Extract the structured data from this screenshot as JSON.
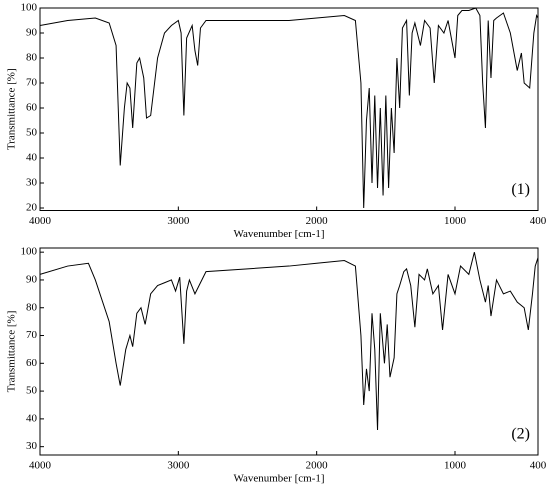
{
  "chart_data": [
    {
      "type": "line",
      "annotation": "(1)",
      "xlabel": "Wavenumber [cm-1]",
      "ylabel": "Transmittance [%]",
      "color": "#000000",
      "xlim": [
        4000,
        400
      ],
      "xticks": [
        4000,
        3000,
        2000,
        1000,
        400
      ],
      "ylim": [
        19,
        100
      ],
      "yticks": [
        20,
        30,
        40,
        50,
        60,
        70,
        80,
        90,
        100
      ],
      "x": [
        4000,
        3800,
        3600,
        3500,
        3450,
        3420,
        3390,
        3370,
        3350,
        3330,
        3300,
        3280,
        3250,
        3230,
        3200,
        3150,
        3100,
        3050,
        3000,
        2980,
        2960,
        2940,
        2900,
        2880,
        2860,
        2840,
        2800,
        2500,
        2200,
        2000,
        1800,
        1720,
        1680,
        1660,
        1640,
        1620,
        1600,
        1580,
        1560,
        1540,
        1520,
        1500,
        1480,
        1460,
        1440,
        1420,
        1400,
        1380,
        1350,
        1330,
        1310,
        1290,
        1250,
        1220,
        1180,
        1150,
        1120,
        1080,
        1050,
        1000,
        980,
        950,
        900,
        850,
        820,
        800,
        780,
        760,
        740,
        720,
        700,
        650,
        600,
        550,
        520,
        500,
        460,
        430,
        410,
        400
      ],
      "values": [
        93,
        95,
        96,
        94,
        85,
        37,
        60,
        70,
        68,
        52,
        78,
        80,
        72,
        56,
        57,
        80,
        90,
        93,
        95,
        90,
        57,
        88,
        93,
        83,
        77,
        92,
        95,
        95,
        95,
        96,
        97,
        95,
        70,
        20,
        55,
        68,
        30,
        65,
        28,
        60,
        25,
        65,
        28,
        60,
        42,
        80,
        60,
        92,
        95,
        65,
        90,
        94,
        85,
        95,
        92,
        70,
        93,
        90,
        95,
        80,
        97,
        99,
        99,
        100,
        97,
        70,
        52,
        95,
        72,
        95,
        96,
        98,
        90,
        75,
        82,
        70,
        68,
        90,
        97,
        96
      ]
    },
    {
      "type": "line",
      "annotation": "(2)",
      "xlabel": "Wavenumber [cm-1]",
      "ylabel": "Transmittance [%]",
      "color": "#000000",
      "xlim": [
        4000,
        400
      ],
      "xticks": [
        4000,
        3000,
        2000,
        1000,
        400
      ],
      "ylim": [
        27,
        101.5
      ],
      "yticks": [
        30,
        40,
        50,
        60,
        70,
        80,
        90,
        100
      ],
      "x": [
        4000,
        3800,
        3650,
        3600,
        3500,
        3450,
        3420,
        3380,
        3350,
        3330,
        3300,
        3270,
        3240,
        3200,
        3150,
        3100,
        3050,
        3020,
        2990,
        2960,
        2940,
        2920,
        2880,
        2850,
        2800,
        2500,
        2200,
        2000,
        1800,
        1720,
        1680,
        1660,
        1640,
        1620,
        1600,
        1580,
        1560,
        1540,
        1510,
        1490,
        1470,
        1440,
        1420,
        1400,
        1370,
        1350,
        1320,
        1290,
        1260,
        1220,
        1200,
        1160,
        1120,
        1090,
        1050,
        1000,
        960,
        900,
        860,
        820,
        780,
        760,
        740,
        700,
        650,
        600,
        550,
        500,
        470,
        440,
        420,
        400
      ],
      "values": [
        92,
        95,
        96,
        90,
        75,
        60,
        52,
        65,
        70,
        66,
        78,
        80,
        74,
        85,
        88,
        89,
        90,
        86,
        91,
        67,
        86,
        90,
        85,
        88,
        93,
        94,
        95,
        96,
        97,
        95,
        70,
        45,
        58,
        50,
        78,
        65,
        36,
        78,
        60,
        74,
        55,
        62,
        85,
        88,
        93,
        94,
        88,
        73,
        92,
        90,
        94,
        85,
        88,
        72,
        92,
        85,
        95,
        92,
        100,
        90,
        82,
        88,
        77,
        90,
        85,
        86,
        82,
        80,
        72,
        85,
        95,
        98
      ]
    }
  ]
}
